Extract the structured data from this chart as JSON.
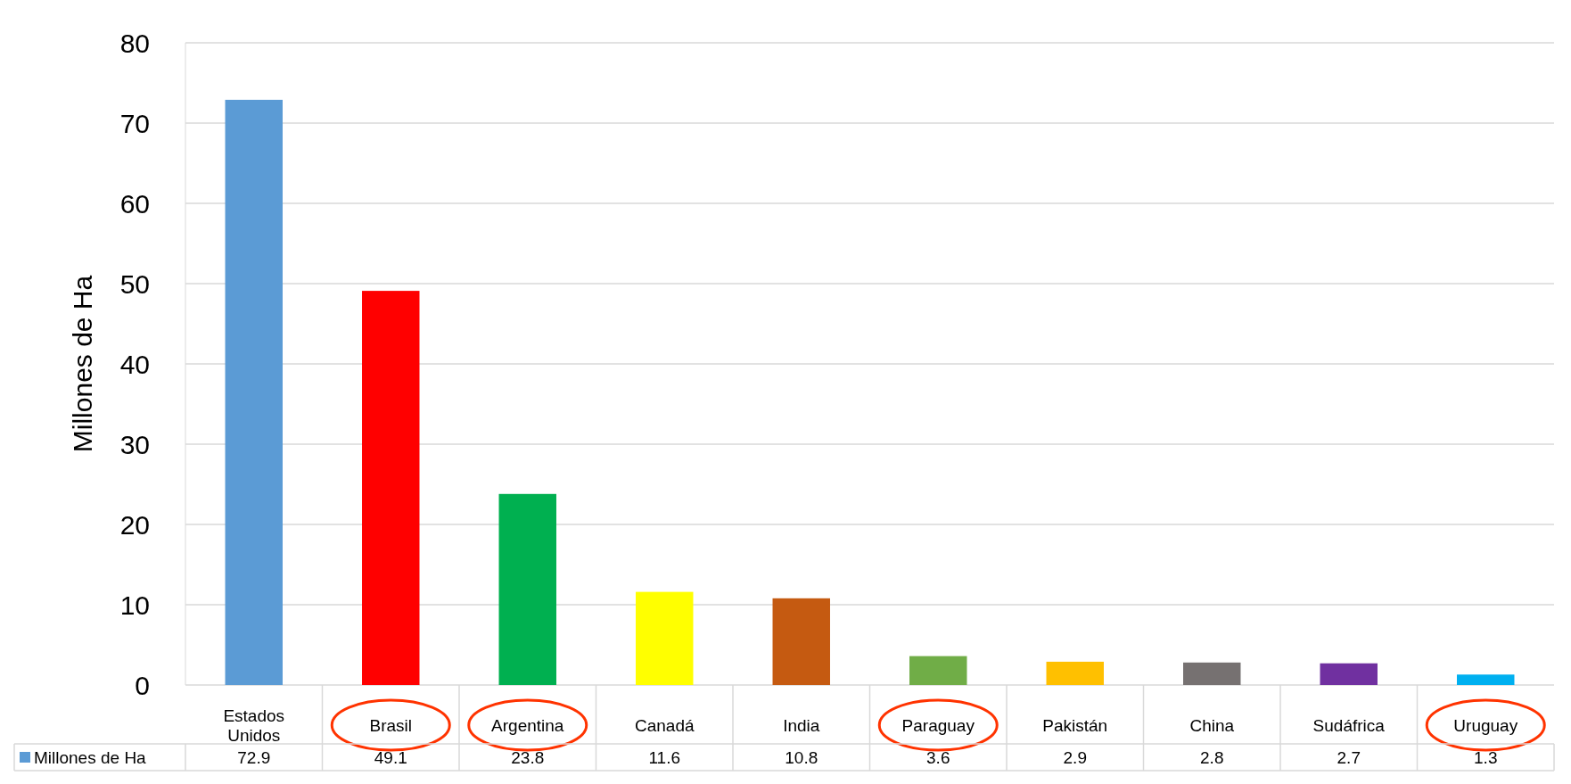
{
  "chart_data": {
    "type": "bar",
    "ylabel": "Millones de Ha",
    "categories": [
      "Estados Unidos",
      "Brasil",
      "Argentina",
      "Canadá",
      "India",
      "Paraguay",
      "Pakistán",
      "China",
      "Sudáfrica",
      "Uruguay"
    ],
    "series": [
      {
        "name": "Millones de Ha",
        "color": "#5b9bd5",
        "values": [
          72.9,
          49.1,
          23.8,
          11.6,
          10.8,
          3.6,
          2.9,
          2.8,
          2.7,
          1.3
        ],
        "colors": [
          "#5b9bd5",
          "#ff0000",
          "#00b050",
          "#ffff00",
          "#c55a11",
          "#70ad47",
          "#ffc000",
          "#767171",
          "#7030a0",
          "#00b0f0"
        ]
      }
    ],
    "ylim": [
      0,
      80
    ],
    "yticks": [
      0,
      10,
      20,
      30,
      40,
      50,
      60,
      70,
      80
    ],
    "grid": "y",
    "legend": "bottom",
    "data_labels": true
  }
}
